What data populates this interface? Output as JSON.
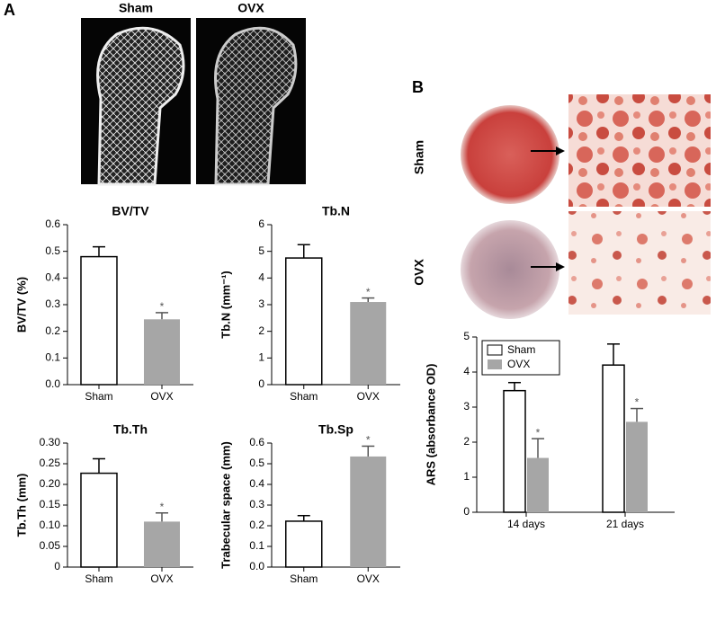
{
  "figure": {
    "panels": [
      "A",
      "B"
    ],
    "ct_labels": [
      "Sham",
      "OVX"
    ],
    "dish_labels": [
      "Sham",
      "OVX"
    ]
  },
  "chart_data": [
    {
      "type": "bar",
      "title": "BV/TV",
      "ylabel": "BV/TV (%)",
      "categories": [
        "Sham",
        "OVX"
      ],
      "values": [
        0.48,
        0.245
      ],
      "errors": [
        0.037,
        0.025
      ],
      "colors": [
        "#ffffff",
        "#a6a6a6"
      ],
      "ylim": [
        0,
        0.6
      ],
      "yticks": [
        {
          "value": 0,
          "label": "0.0"
        },
        0.1,
        0.2,
        0.3,
        0.4,
        0.5,
        0.6
      ],
      "annotations": [
        {
          "text": "*",
          "category": "OVX"
        }
      ]
    },
    {
      "type": "bar",
      "title": "Tb.N",
      "ylabel": "Tb.N (mm⁻¹)",
      "categories": [
        "Sham",
        "OVX"
      ],
      "values": [
        4.75,
        3.1
      ],
      "errors": [
        0.5,
        0.15
      ],
      "colors": [
        "#ffffff",
        "#a6a6a6"
      ],
      "ylim": [
        0,
        6
      ],
      "yticks": [
        0,
        1,
        2,
        3,
        4,
        5,
        6
      ],
      "annotations": [
        {
          "text": "*",
          "category": "OVX"
        }
      ]
    },
    {
      "type": "bar",
      "title": "Tb.Th",
      "ylabel": "Tb.Th (mm)",
      "categories": [
        "Sham",
        "OVX"
      ],
      "values": [
        0.227,
        0.11
      ],
      "errors": [
        0.035,
        0.021
      ],
      "colors": [
        "#ffffff",
        "#a6a6a6"
      ],
      "ylim": [
        0,
        0.3
      ],
      "yticks": [
        0,
        0.05,
        {
          "value": 0.1,
          "label": "0.10"
        },
        0.15,
        {
          "value": 0.2,
          "label": "0.20"
        },
        0.25,
        {
          "value": 0.3,
          "label": "0.30"
        }
      ],
      "annotations": [
        {
          "text": "*",
          "category": "OVX"
        }
      ]
    },
    {
      "type": "bar",
      "title": "Tb.Sp",
      "ylabel": "Trabecular space (mm)",
      "categories": [
        "Sham",
        "OVX"
      ],
      "values": [
        0.222,
        0.535
      ],
      "errors": [
        0.027,
        0.05
      ],
      "colors": [
        "#ffffff",
        "#a6a6a6"
      ],
      "ylim": [
        0,
        0.6
      ],
      "yticks": [
        {
          "value": 0,
          "label": "0.0"
        },
        0.1,
        0.2,
        0.3,
        0.4,
        0.5,
        0.6
      ],
      "annotations": [
        {
          "text": "*",
          "category": "OVX"
        }
      ]
    },
    {
      "type": "bar",
      "ylabel": "ARS (absorbance OD)",
      "categories": [
        "14 days",
        "21 days"
      ],
      "series": [
        {
          "name": "Sham",
          "color": "#ffffff",
          "values": [
            3.47,
            4.2
          ],
          "errors": [
            0.23,
            0.6
          ]
        },
        {
          "name": "OVX",
          "color": "#a6a6a6",
          "values": [
            1.55,
            2.58
          ],
          "errors": [
            0.55,
            0.38
          ]
        }
      ],
      "ylim": [
        0,
        5
      ],
      "yticks": [
        0,
        1,
        2,
        3,
        4,
        5
      ],
      "legend": "upper left",
      "annotations": [
        {
          "text": "*",
          "series": "OVX",
          "category": "14 days"
        },
        {
          "text": "*",
          "series": "OVX",
          "category": "21 days"
        }
      ]
    }
  ]
}
